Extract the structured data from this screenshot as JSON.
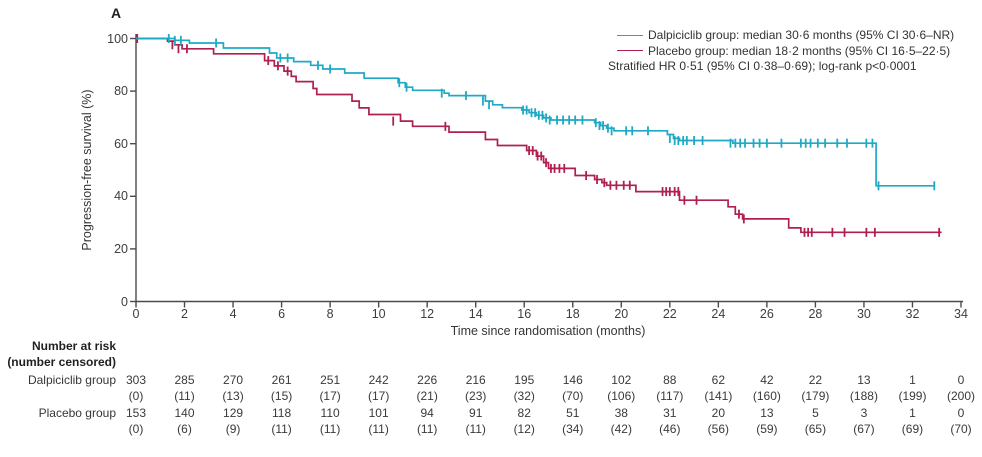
{
  "panel_label": "A",
  "colors": {
    "dalpiciclib": "#1fa9c5",
    "placebo": "#b01f51",
    "axis": "#4b4a4d",
    "text": "#363538"
  },
  "legend": {
    "dalpiciclib_label": "Dalpiciclib group: median 30·6 months (95% CI 30·6–NR)",
    "placebo_label": "Placebo group: median 18·2 months (95% CI 16·5–22·5)",
    "hr_line": "Stratified HR 0·51 (95% CI 0·38–0·69); log-rank p<0·0001"
  },
  "chart_data": {
    "type": "line",
    "subtype": "kaplan-meier-step",
    "title": "",
    "xlabel": "Time since randomisation (months)",
    "ylabel": "Progression-free survival (%)",
    "xlim": [
      0,
      34
    ],
    "ylim": [
      0,
      100
    ],
    "xticks": [
      0,
      2,
      4,
      6,
      8,
      10,
      12,
      14,
      16,
      18,
      20,
      22,
      24,
      26,
      28,
      30,
      32,
      34
    ],
    "yticks": [
      0,
      20,
      40,
      60,
      80,
      100
    ],
    "grid": false,
    "legend_position": "top-right",
    "series": [
      {
        "name": "Dalpiciclib group",
        "color": "#1fa9c5",
        "median_months": "30·6",
        "median_ci": "30·6–NR",
        "steps": [
          [
            0,
            100
          ],
          [
            1.6,
            99.3
          ],
          [
            2.2,
            98.3
          ],
          [
            3.6,
            96.4
          ],
          [
            5.5,
            94.5
          ],
          [
            5.8,
            92.6
          ],
          [
            6.5,
            91.2
          ],
          [
            7.2,
            89.8
          ],
          [
            7.7,
            88.4
          ],
          [
            8.6,
            86.9
          ],
          [
            9.4,
            84.9
          ],
          [
            10.8,
            83.2
          ],
          [
            11.1,
            81.5
          ],
          [
            11.4,
            80.3
          ],
          [
            12.7,
            79.2
          ],
          [
            12.9,
            78.3
          ],
          [
            14.4,
            76.2
          ],
          [
            14.7,
            74.8
          ],
          [
            15.1,
            73.7
          ],
          [
            15.9,
            72.8
          ],
          [
            16.2,
            71.8
          ],
          [
            16.5,
            70.8
          ],
          [
            16.8,
            69.8
          ],
          [
            17.1,
            69.0
          ],
          [
            18.9,
            68.0
          ],
          [
            19.15,
            66.9
          ],
          [
            19.4,
            65.9
          ],
          [
            19.7,
            64.9
          ],
          [
            21.9,
            63.5
          ],
          [
            22.15,
            62.0
          ],
          [
            22.4,
            61.2
          ],
          [
            24.6,
            60.2
          ],
          [
            30.5,
            44.0
          ]
        ],
        "end_x": 32.9,
        "censor_marks": [
          [
            1.35,
            100
          ],
          [
            1.6,
            99.3
          ],
          [
            1.85,
            99.3
          ],
          [
            3.3,
            98.3
          ],
          [
            5.95,
            92.6
          ],
          [
            6.25,
            92.6
          ],
          [
            7.5,
            89.8
          ],
          [
            8.0,
            88.4
          ],
          [
            10.85,
            83.2
          ],
          [
            11.15,
            81.5
          ],
          [
            12.6,
            79.2
          ],
          [
            13.6,
            78.3
          ],
          [
            14.3,
            76.2
          ],
          [
            14.55,
            74.8
          ],
          [
            15.95,
            72.8
          ],
          [
            16.1,
            72.8
          ],
          [
            16.3,
            71.8
          ],
          [
            16.45,
            71.8
          ],
          [
            16.6,
            70.8
          ],
          [
            16.75,
            70.8
          ],
          [
            16.9,
            69.8
          ],
          [
            17.05,
            69.0
          ],
          [
            17.35,
            69.0
          ],
          [
            17.6,
            69.0
          ],
          [
            17.85,
            69.0
          ],
          [
            18.1,
            69.0
          ],
          [
            18.4,
            69.0
          ],
          [
            18.95,
            68.0
          ],
          [
            19.1,
            66.9
          ],
          [
            19.25,
            66.9
          ],
          [
            19.45,
            65.9
          ],
          [
            19.6,
            64.9
          ],
          [
            20.2,
            64.9
          ],
          [
            20.45,
            64.9
          ],
          [
            21.1,
            64.9
          ],
          [
            22.0,
            62.0
          ],
          [
            22.2,
            61.2
          ],
          [
            22.35,
            61.2
          ],
          [
            22.55,
            61.2
          ],
          [
            22.7,
            61.2
          ],
          [
            23.0,
            61.2
          ],
          [
            23.35,
            61.2
          ],
          [
            24.5,
            60.2
          ],
          [
            24.7,
            60.2
          ],
          [
            24.9,
            60.2
          ],
          [
            25.1,
            60.2
          ],
          [
            25.45,
            60.2
          ],
          [
            25.7,
            60.2
          ],
          [
            26.0,
            60.2
          ],
          [
            26.6,
            60.2
          ],
          [
            27.4,
            60.2
          ],
          [
            27.6,
            60.2
          ],
          [
            27.8,
            60.2
          ],
          [
            28.1,
            60.2
          ],
          [
            28.4,
            60.2
          ],
          [
            28.9,
            60.2
          ],
          [
            29.3,
            60.2
          ],
          [
            30.1,
            60.2
          ],
          [
            30.35,
            60.2
          ],
          [
            30.6,
            44.0
          ],
          [
            32.9,
            44.0
          ]
        ]
      },
      {
        "name": "Placebo group",
        "color": "#b01f51",
        "median_months": "18·2",
        "median_ci": "16·5–22·5",
        "steps": [
          [
            0,
            100
          ],
          [
            1.3,
            99.0
          ],
          [
            1.6,
            97.6
          ],
          [
            1.9,
            96.1
          ],
          [
            3.2,
            94.2
          ],
          [
            5.3,
            91.6
          ],
          [
            5.7,
            89.6
          ],
          [
            6.1,
            87.6
          ],
          [
            6.4,
            85.6
          ],
          [
            6.6,
            83.6
          ],
          [
            7.3,
            81.0
          ],
          [
            7.45,
            78.7
          ],
          [
            8.9,
            76.2
          ],
          [
            9.2,
            73.6
          ],
          [
            9.6,
            71.1
          ],
          [
            10.9,
            68.6
          ],
          [
            11.4,
            66.6
          ],
          [
            12.9,
            64.4
          ],
          [
            14.4,
            61.6
          ],
          [
            14.9,
            59.3
          ],
          [
            16.1,
            57.4
          ],
          [
            16.5,
            55.3
          ],
          [
            16.8,
            52.8
          ],
          [
            17.0,
            50.6
          ],
          [
            18.1,
            47.9
          ],
          [
            18.9,
            46.4
          ],
          [
            19.2,
            45.2
          ],
          [
            19.4,
            44.2
          ],
          [
            20.6,
            41.8
          ],
          [
            22.4,
            38.5
          ],
          [
            24.4,
            36.0
          ],
          [
            24.7,
            33.2
          ],
          [
            25.0,
            31.4
          ],
          [
            26.9,
            28.0
          ],
          [
            27.4,
            26.3
          ]
        ],
        "end_x": 33.2,
        "censor_marks": [
          [
            0.05,
            100
          ],
          [
            1.5,
            97.6
          ],
          [
            1.75,
            96.1
          ],
          [
            2.1,
            96.1
          ],
          [
            5.45,
            91.6
          ],
          [
            5.85,
            89.6
          ],
          [
            6.25,
            87.6
          ],
          [
            10.6,
            68.6
          ],
          [
            12.75,
            66.6
          ],
          [
            16.2,
            57.4
          ],
          [
            16.35,
            57.4
          ],
          [
            16.55,
            55.3
          ],
          [
            16.7,
            55.3
          ],
          [
            16.9,
            52.8
          ],
          [
            17.1,
            50.6
          ],
          [
            17.25,
            50.6
          ],
          [
            17.45,
            50.6
          ],
          [
            17.65,
            50.6
          ],
          [
            18.55,
            47.9
          ],
          [
            19.0,
            46.4
          ],
          [
            19.3,
            45.2
          ],
          [
            19.55,
            44.2
          ],
          [
            19.8,
            44.2
          ],
          [
            20.1,
            44.2
          ],
          [
            20.35,
            44.2
          ],
          [
            21.7,
            41.8
          ],
          [
            21.85,
            41.8
          ],
          [
            22.0,
            41.8
          ],
          [
            22.2,
            41.8
          ],
          [
            22.35,
            41.8
          ],
          [
            22.6,
            38.5
          ],
          [
            23.1,
            38.5
          ],
          [
            24.85,
            33.2
          ],
          [
            25.05,
            31.4
          ],
          [
            27.55,
            26.3
          ],
          [
            27.7,
            26.3
          ],
          [
            27.85,
            26.3
          ],
          [
            28.7,
            26.3
          ],
          [
            29.2,
            26.3
          ],
          [
            30.1,
            26.3
          ],
          [
            30.45,
            26.3
          ],
          [
            33.1,
            26.3
          ]
        ]
      }
    ]
  },
  "risk_table": {
    "header_line1": "Number at risk",
    "header_line2": "(number censored)",
    "months": [
      0,
      2,
      4,
      6,
      8,
      10,
      12,
      14,
      16,
      18,
      20,
      22,
      24,
      26,
      28,
      30,
      32,
      34
    ],
    "rows": [
      {
        "label": "Dalpiciclib group",
        "at_risk": [
          303,
          285,
          270,
          261,
          251,
          242,
          226,
          216,
          195,
          146,
          102,
          88,
          62,
          42,
          22,
          13,
          1,
          0
        ],
        "censored": [
          "(0)",
          "(11)",
          "(13)",
          "(15)",
          "(17)",
          "(17)",
          "(21)",
          "(23)",
          "(32)",
          "(70)",
          "(106)",
          "(117)",
          "(141)",
          "(160)",
          "(179)",
          "(188)",
          "(199)",
          "(200)"
        ]
      },
      {
        "label": "Placebo group",
        "at_risk": [
          153,
          140,
          129,
          118,
          110,
          101,
          94,
          91,
          82,
          51,
          38,
          31,
          20,
          13,
          5,
          3,
          1,
          0
        ],
        "censored": [
          "(0)",
          "(6)",
          "(9)",
          "(11)",
          "(11)",
          "(11)",
          "(11)",
          "(11)",
          "(12)",
          "(34)",
          "(42)",
          "(46)",
          "(56)",
          "(59)",
          "(65)",
          "(67)",
          "(69)",
          "(70)"
        ]
      }
    ]
  }
}
